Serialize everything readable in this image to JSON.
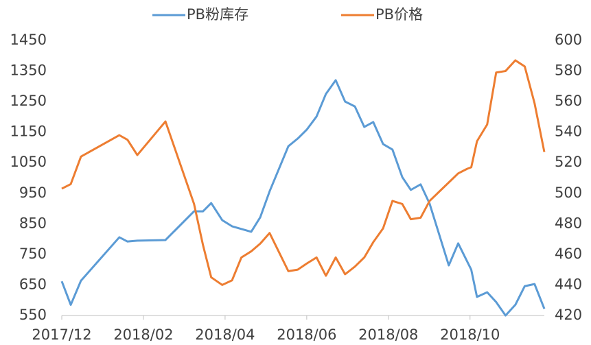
{
  "chart_data": {
    "type": "line",
    "grid": false,
    "xlim": [
      0,
      11.82
    ],
    "xticks": [
      {
        "value": 0,
        "label": "2017/12"
      },
      {
        "value": 2,
        "label": "2018/02"
      },
      {
        "value": 4,
        "label": "2018/04"
      },
      {
        "value": 6,
        "label": "2018/06"
      },
      {
        "value": 8,
        "label": "2018/08"
      },
      {
        "value": 10,
        "label": "2018/10"
      }
    ],
    "ylim": [
      550,
      1450
    ],
    "yticks": [
      550,
      650,
      750,
      850,
      950,
      1050,
      1150,
      1250,
      1350,
      1450
    ],
    "y2lim": [
      420,
      600
    ],
    "y2ticks": [
      420,
      440,
      460,
      480,
      500,
      520,
      540,
      560,
      580,
      600
    ],
    "legend": "top",
    "series": [
      {
        "name": "PB粉库存",
        "color": "#5b9bd5",
        "axis": "y",
        "x": [
          0,
          0.22,
          0.47,
          1.41,
          1.61,
          1.85,
          2.54,
          3.24,
          3.46,
          3.66,
          3.93,
          4.17,
          4.64,
          4.86,
          5.09,
          5.55,
          5.78,
          6.0,
          6.24,
          6.47,
          6.71,
          6.94,
          7.18,
          7.41,
          7.63,
          7.87,
          8.1,
          8.34,
          8.55,
          8.79,
          9.01,
          9.48,
          9.71,
          10.03,
          10.17,
          10.42,
          10.64,
          10.87,
          11.11,
          11.34,
          11.58,
          11.82
        ],
        "values": [
          662,
          585,
          664,
          806,
          792,
          795,
          797,
          891,
          891,
          918,
          862,
          842,
          824,
          871,
          956,
          1104,
          1129,
          1158,
          1201,
          1275,
          1320,
          1250,
          1234,
          1167,
          1183,
          1111,
          1093,
          1003,
          961,
          979,
          916,
          714,
          786,
          700,
          611,
          626,
          594,
          550,
          585,
          646,
          653,
          572
        ]
      },
      {
        "name": "PB价格",
        "color": "#ed7d31",
        "axis": "y2",
        "x": [
          0,
          0.22,
          0.47,
          1.41,
          1.61,
          1.85,
          2.54,
          3.24,
          3.46,
          3.66,
          3.93,
          4.17,
          4.4,
          4.64,
          4.86,
          5.09,
          5.55,
          5.78,
          6.0,
          6.24,
          6.47,
          6.71,
          6.94,
          7.18,
          7.41,
          7.63,
          7.87,
          8.1,
          8.34,
          8.55,
          8.79,
          9.01,
          9.71,
          9.93,
          10.03,
          10.17,
          10.42,
          10.64,
          10.87,
          11.11,
          11.34,
          11.58,
          11.82
        ],
        "values": [
          503,
          506,
          524,
          538,
          535,
          525,
          547,
          493,
          466,
          445,
          440,
          443,
          458,
          462,
          467,
          474,
          449,
          450,
          454,
          458,
          446,
          458,
          447,
          452,
          458,
          468,
          477,
          495,
          493,
          483,
          484,
          495,
          513,
          516,
          517,
          534,
          545,
          579,
          580,
          587,
          583,
          559,
          527
        ]
      }
    ]
  }
}
